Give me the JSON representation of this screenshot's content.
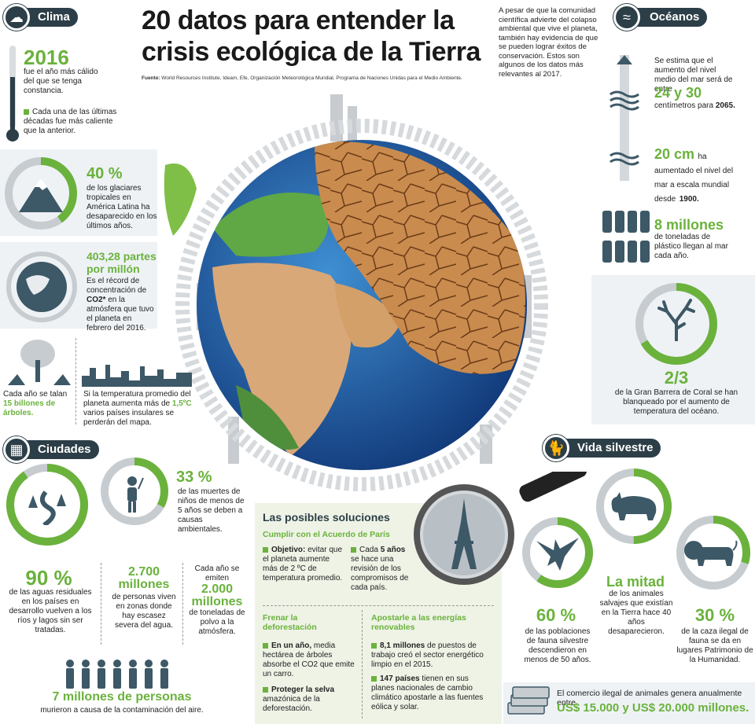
{
  "header": {
    "title_line1": "20 datos para entender la",
    "title_line2": "crisis ecológica de la Tierra",
    "source_label": "Fuente:",
    "source_text": "World Resources Institute, Ideam, Efe, Organización Meteorológica Mundial, Programa de Naciones Unidas para el Medio Ambiente.",
    "intro": "A pesar de que la comunidad científica advierte del colapso ambiental que vive el planeta, también hay evidencia de que se pueden lograr éxitos de conservación. Estos son algunos de los datos más relevantes al 2017."
  },
  "clima": {
    "tag": "Clima",
    "year": "2016",
    "year_text": "fue el año más cálido del que se tenga constancia.",
    "decades_text": "Cada una de las últimas décadas fue más caliente que la anterior.",
    "glaciers_value": "40 %",
    "glaciers_text": "de los glaciares tropicales en América Latina ha desaparecido en los últimos años.",
    "glaciers_fraction": 0.4,
    "co2_value_line1": "403,28 partes",
    "co2_value_line2": "por millón",
    "co2_text_a": "Es el récord de concentración de",
    "co2_text_b": "CO2*",
    "co2_text_c": "en la atmósfera que tuvo el planeta en febrero del 2016.",
    "trees_text_a": "Cada año se talan",
    "trees_text_b": "15 billones de árboles.",
    "islands_text_a": "Si la temperatura promedio del planeta aumenta más de",
    "islands_text_b": "1,5ºC",
    "islands_text_c": "varios países insulares se perderán del mapa."
  },
  "oceanos": {
    "tag": "Océanos",
    "sea_text_a": "Se estima que el aumento del nivel medio del mar será de entre",
    "sea_value": "24 y 30",
    "sea_text_b": "centímetros para",
    "sea_year": "2065.",
    "rise_value": "20 cm",
    "rise_text_a": "ha aumentado el nivel del mar a escala mundial desde",
    "rise_year": "1900.",
    "plastic_value": "8 millones",
    "plastic_text": "de toneladas de plástico llegan al mar cada año.",
    "coral_value": "2/3",
    "coral_text": "de la Gran Barrera de Coral se han blanqueado por el aumento de temperatura del océano.",
    "coral_fraction": 0.667
  },
  "ciudades": {
    "tag": "Ciudades",
    "children_value": "33 %",
    "children_text": "de las muertes de niños de menos de 5 años se deben a causas ambientales.",
    "children_fraction": 0.33,
    "water_value": "90 %",
    "water_text": "de las aguas residuales en los países en desarrollo vuelven a los ríos y lagos sin ser tratadas.",
    "water_fraction": 0.9,
    "scarcity_value": "2.700 millones",
    "scarcity_text": "de personas viven en zonas donde hay escasez severa del agua.",
    "dust_text_a": "Cada año se emiten",
    "dust_value": "2.000 millones",
    "dust_text_b": "de toneladas de polvo a la atmósfera.",
    "pollution_value": "7 millones de personas",
    "pollution_text": "murieron a causa de la contaminación del aire."
  },
  "soluciones": {
    "title": "Las posibles soluciones",
    "paris_title": "Cumplir con el Acuerdo de París",
    "paris_obj_label": "Objetivo:",
    "paris_obj_text": "evitar que el planeta aumente más de 2 ºC de temperatura promedio.",
    "paris_review_a": "Cada",
    "paris_review_b": "5 años",
    "paris_review_c": "se hace una revisión de los compromisos de cada país.",
    "defor_title": "Frenar la deforestación",
    "defor_1_label": "En un año,",
    "defor_1_text": "media hectárea de árboles absorbe el CO2 que emite un carro.",
    "defor_2_label": "Proteger la selva",
    "defor_2_text": "amazónica de la deforestación.",
    "renew_title": "Apostarle a las energías renovables",
    "renew_1_label": "8,1 millones",
    "renew_1_text": "de puestos de trabajo creó el sector energético limpio en el 2015.",
    "renew_2_label": "147 países",
    "renew_2_text": "tienen en sus planes nacionales de cambio climático apostarle a las fuentes eólica y solar."
  },
  "vida": {
    "tag": "Vida silvestre",
    "half_value": "La mitad",
    "half_text": "de los animales salvajes que existían en la Tierra hace 40 años desaparecieron.",
    "fauna_value": "60 %",
    "fauna_text": "de las poblaciones de fauna silvestre descendieron en menos de 50 años.",
    "fauna_fraction": 0.6,
    "hunt_value": "30 %",
    "hunt_text": "de la caza ilegal de fauna se da en lugares Patrimonio de la Humanidad.",
    "hunt_fraction": 0.3,
    "trade_text": "El comercio ilegal de animales genera anualmente entre",
    "trade_value": "US$ 15.000 y US$ 20.000 millones."
  },
  "colors": {
    "accent": "#6ab23c",
    "tag_bg": "#2c3e47",
    "grey_panel": "#eef2f5"
  },
  "icons": [
    "sun-cloud-icon",
    "thermometer-icon",
    "mountain-icon",
    "globe-icon",
    "tree-icon",
    "skyline-icon",
    "waves-icon",
    "bottle-icon",
    "coral-icon",
    "city-icon",
    "child-icon",
    "river-icon",
    "people-icon",
    "magnifier-icon",
    "eiffel-icon",
    "cat-icon",
    "rhino-icon",
    "eagle-icon",
    "lion-icon",
    "money-icon"
  ]
}
